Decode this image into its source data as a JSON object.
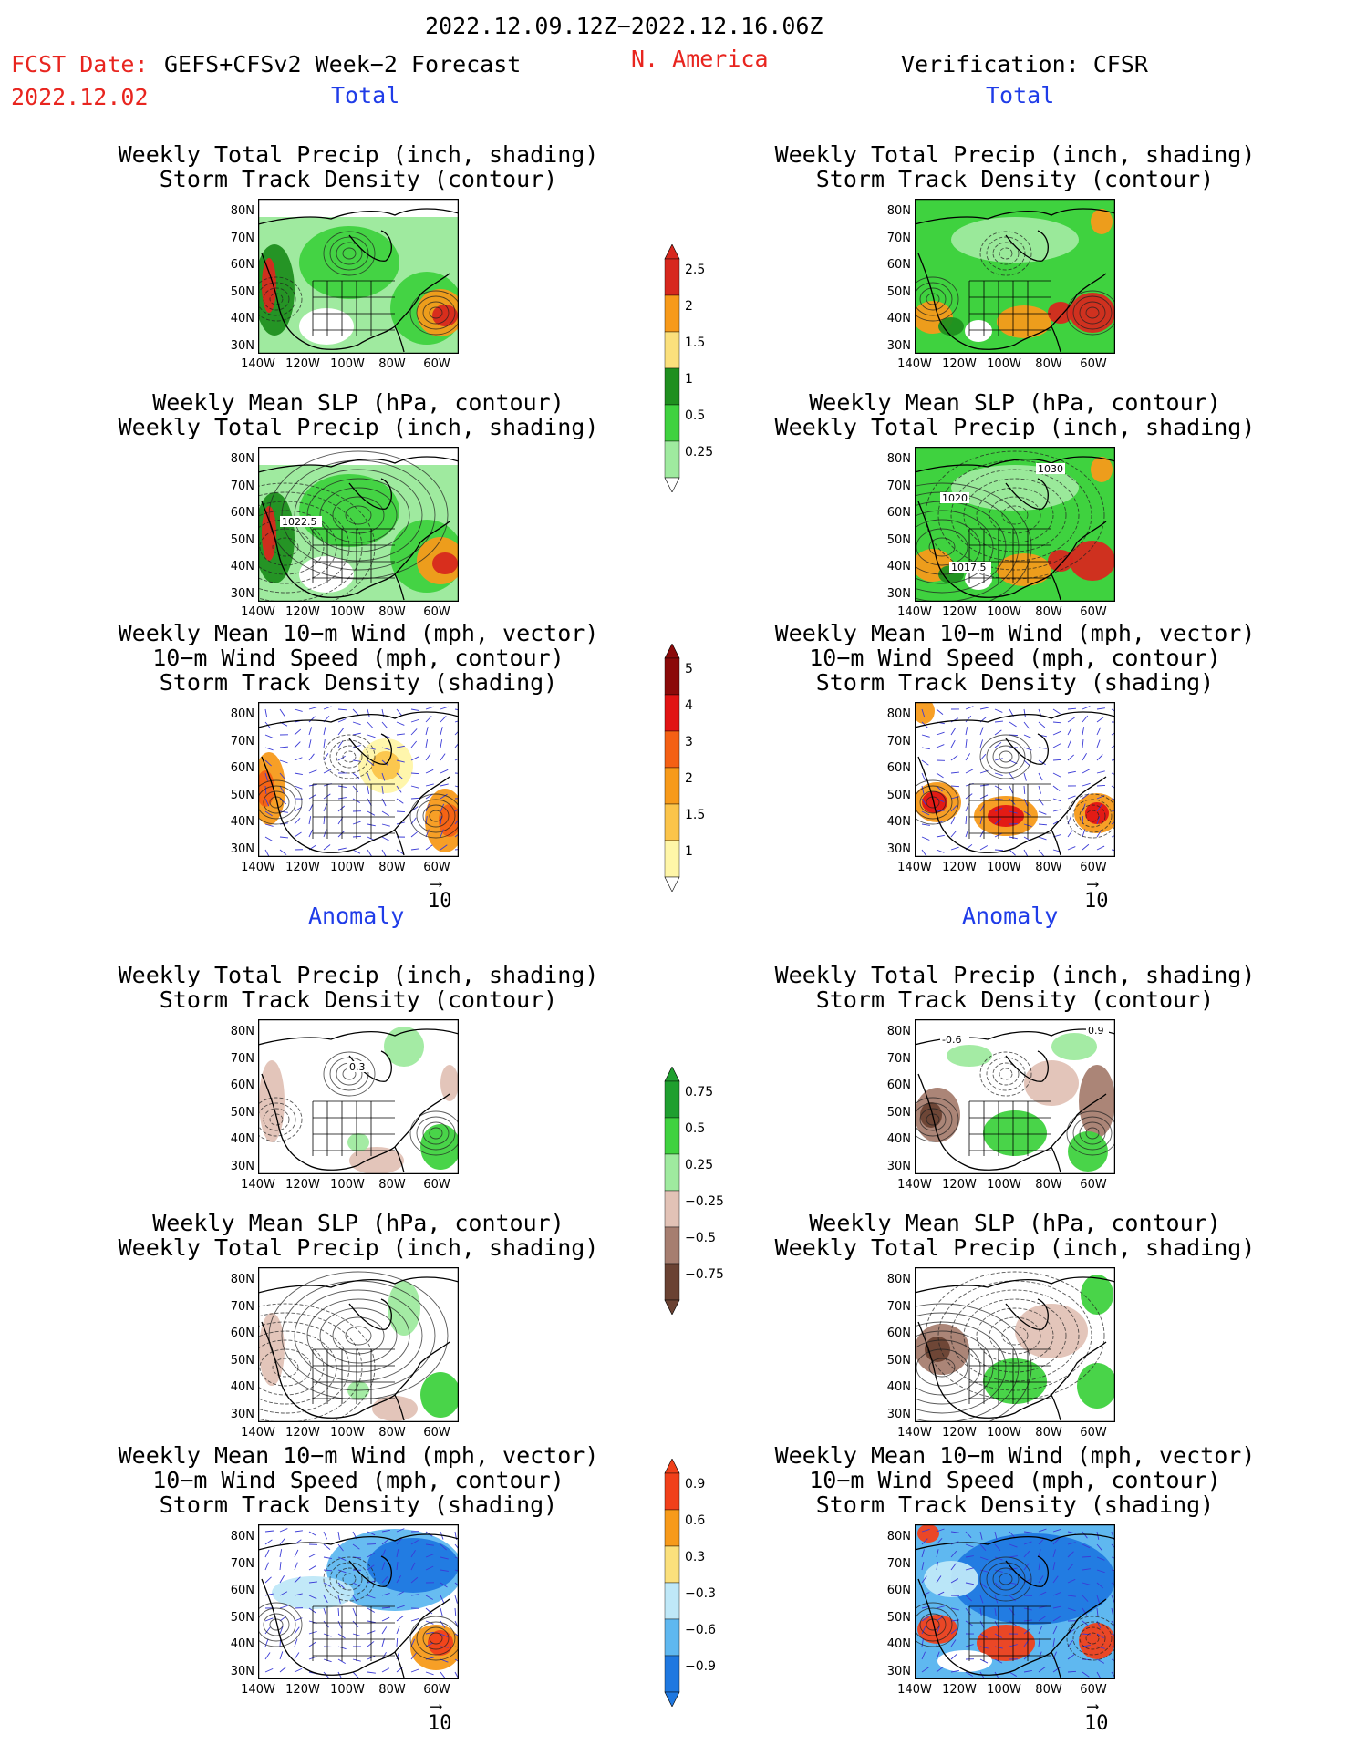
{
  "header": {
    "date_range": "2022.12.09.12Z−2022.12.16.06Z",
    "fcst_label": "FCST Date:",
    "fcst_source": "GEFS+CFSv2 Week−2 Forecast",
    "fcst_date": "2022.12.02",
    "region": "N. America",
    "verification": "Verification: CFSR"
  },
  "sections": {
    "total": "Total",
    "anomaly": "Anomaly"
  },
  "panel_titles": {
    "precip_storm": [
      "Weekly Total Precip (inch, shading)",
      "Storm Track Density (contour)"
    ],
    "slp_precip": [
      "Weekly Mean SLP (hPa, contour)",
      "Weekly Total Precip (inch, shading)"
    ],
    "wind_storm": [
      "Weekly Mean 10−m Wind (mph, vector)",
      "10−m Wind Speed (mph, contour)",
      "Storm Track Density (shading)"
    ]
  },
  "axes": {
    "lat_labels": [
      "80N",
      "70N",
      "60N",
      "50N",
      "40N",
      "30N"
    ],
    "lon_labels": [
      "140W",
      "120W",
      "100W",
      "80W",
      "60W"
    ]
  },
  "contour_labels": {
    "fcst_total_slp": "1022.5",
    "ver_total_slp_a": "1030",
    "ver_total_slp_b": "1020",
    "ver_total_slp_c": "1017.5",
    "fcst_anom_precip": "0.3",
    "ver_anom_precip_a": "-0.6",
    "ver_anom_precip_b": "0.9"
  },
  "vector_ref": "10",
  "colorbars": {
    "precip_total": [
      "2.5",
      "2",
      "1.5",
      "1",
      "0.5",
      "0.25"
    ],
    "storm_total": [
      "5",
      "4",
      "3",
      "2",
      "1.5",
      "1"
    ],
    "precip_anom": [
      "0.75",
      "0.5",
      "0.25",
      "−0.25",
      "−0.5",
      "−0.75"
    ],
    "storm_anom": [
      "0.9",
      "0.6",
      "0.3",
      "−0.3",
      "−0.6",
      "−0.9"
    ]
  },
  "colors": {
    "precip_total": [
      "#d7281e",
      "#f79a1a",
      "#fbe07c",
      "#1f8f1f",
      "#3fd23f",
      "#9fea9f"
    ],
    "storm_total": [
      "#8b0a0a",
      "#e11414",
      "#f46014",
      "#f79a1a",
      "#fbc44a",
      "#fff6a8"
    ],
    "precip_anom": [
      "#1f9f2f",
      "#3fd23f",
      "#9fea9f",
      "#e2c2b6",
      "#a67e70",
      "#6a4233"
    ],
    "storm_anom": [
      "#f1401a",
      "#f79a1a",
      "#fbe07c",
      "#bfe8f8",
      "#5fb8f0",
      "#1f78e0"
    ]
  }
}
